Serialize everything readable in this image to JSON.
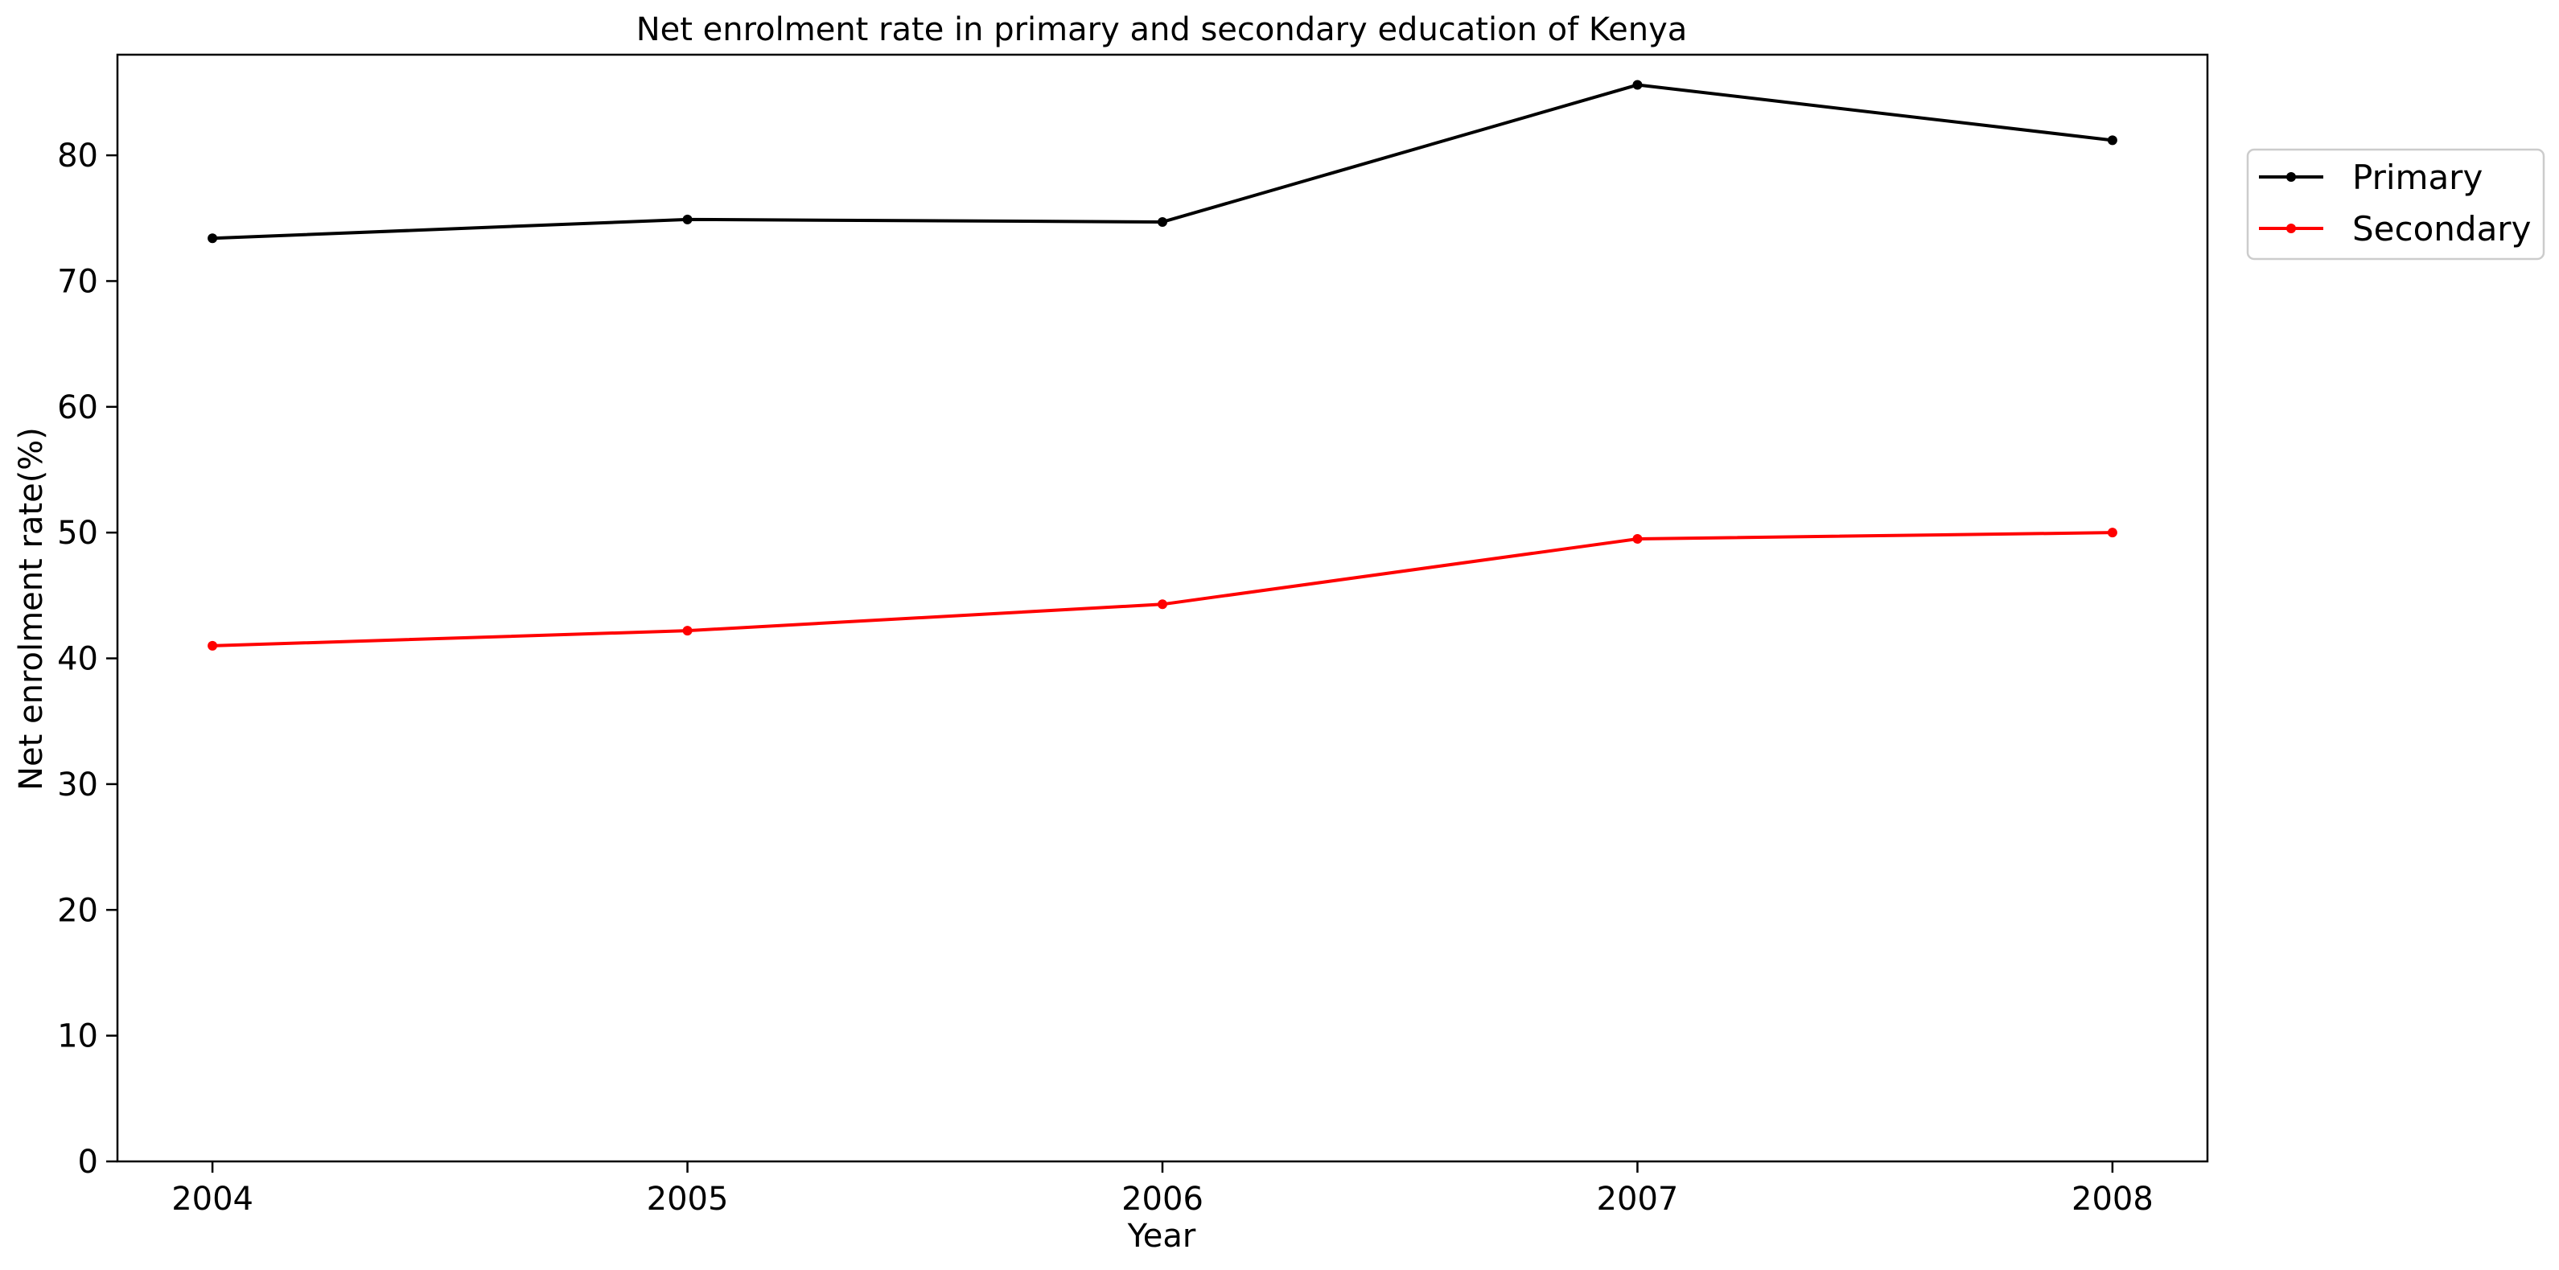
{
  "chart_data": {
    "type": "line",
    "title": "Net enrolment rate in primary and secondary education of Kenya",
    "xlabel": "Year",
    "ylabel": "Net enrolment rate(%)",
    "categories": [
      "2004",
      "2005",
      "2006",
      "2007",
      "2008"
    ],
    "x": [
      2004,
      2005,
      2006,
      2007,
      2008
    ],
    "xlim": [
      2003.8,
      2008.2
    ],
    "ylim": [
      0,
      88
    ],
    "yticks": [
      0,
      10,
      20,
      30,
      40,
      50,
      60,
      70,
      80
    ],
    "grid": false,
    "legend_position": "top-right outside",
    "series": [
      {
        "name": "Primary",
        "color": "#000000",
        "marker": "circle",
        "values": [
          73.4,
          74.9,
          74.7,
          85.6,
          81.2
        ]
      },
      {
        "name": "Secondary",
        "color": "#ff0000",
        "marker": "circle",
        "values": [
          41.0,
          42.2,
          44.3,
          49.5,
          50.0
        ]
      }
    ]
  }
}
